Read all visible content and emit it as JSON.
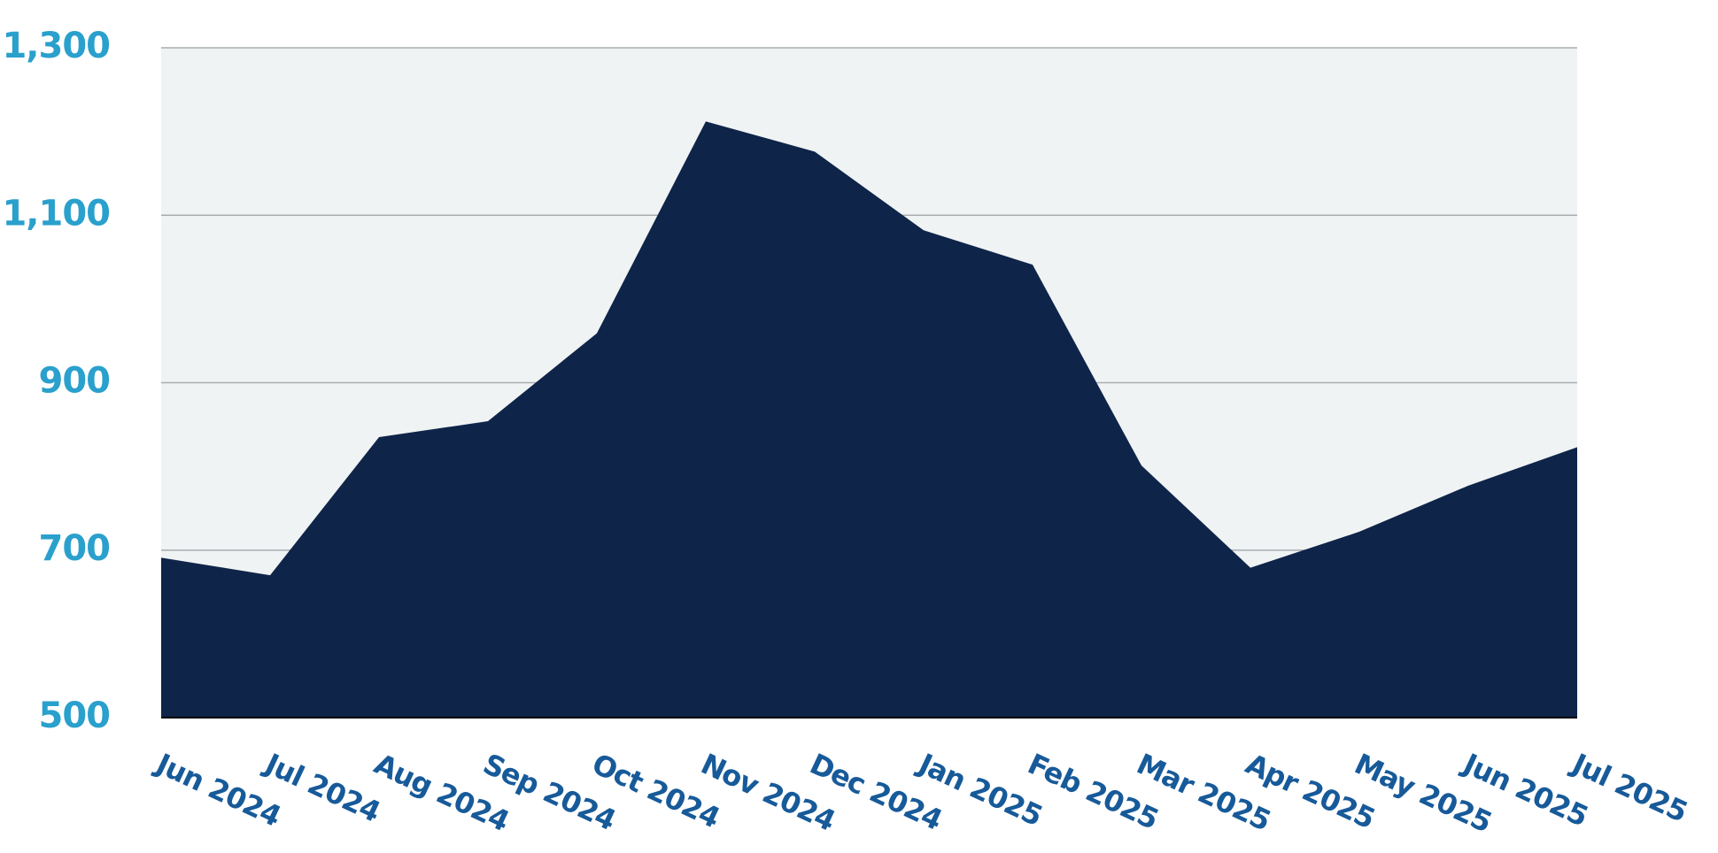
{
  "chart_data": {
    "type": "area",
    "categories": [
      "Jun 2024",
      "Jul 2024",
      "Aug 2024",
      "Sep 2024",
      "Oct 2024",
      "Nov 2024",
      "Dec 2024",
      "Jan 2025",
      "Feb 2025",
      "Mar 2025",
      "Apr 2025",
      "May 2025",
      "Jun 2025",
      "Jul 2025"
    ],
    "values": [
      691,
      670,
      835,
      854,
      959,
      1212,
      1176,
      1082,
      1041,
      801,
      679,
      722,
      777,
      823
    ],
    "color": "#0e2449",
    "plot_background": "#f0f3f4",
    "ylim": [
      500,
      1300
    ],
    "yticks": [
      500,
      700,
      900,
      {
        "value": 1100,
        "label": "1,100"
      },
      {
        "value": 1300,
        "label": "1,300"
      }
    ],
    "grid": true
  }
}
